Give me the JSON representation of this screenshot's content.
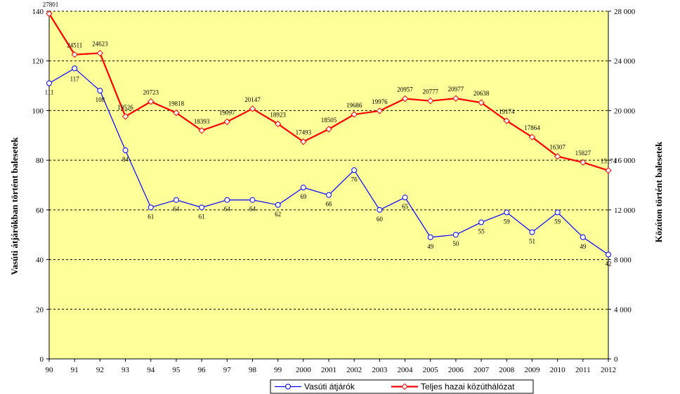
{
  "chart_data": {
    "type": "line",
    "title": "",
    "x": [
      "90",
      "91",
      "92",
      "93",
      "94",
      "95",
      "96",
      "97",
      "98",
      "99",
      "2000",
      "2001",
      "2002",
      "2003",
      "2004",
      "2005",
      "2006",
      "2007",
      "2008",
      "2009",
      "2010",
      "2011",
      "2012"
    ],
    "ylabel_left": "Vasúti átjárókban történt balesetek",
    "ylabel_right": "Közúton történt balesetek",
    "ylim_left": [
      0,
      140
    ],
    "ylim_right": [
      0,
      28000
    ],
    "yticks_left": [
      "0",
      "20",
      "40",
      "60",
      "80",
      "100",
      "120",
      "140"
    ],
    "yticks_right": [
      "0",
      "4 000",
      "8 000",
      "12 000",
      "16 000",
      "20 000",
      "24 000",
      "28 000"
    ],
    "grid": "horizontal dashed",
    "background": "#FFFF99",
    "legend_position": "bottom-center",
    "series": [
      {
        "name": "Vasúti átjárók",
        "axis": "left",
        "color": "#0000FF",
        "values": [
          111,
          117,
          108,
          84,
          61,
          64,
          61,
          64,
          64,
          62,
          69,
          66,
          76,
          60,
          65,
          49,
          50,
          55,
          59,
          51,
          59,
          49,
          42
        ],
        "labels": [
          "111",
          "117",
          "108",
          "84",
          "61",
          "64",
          "61",
          "64",
          "64",
          "62",
          "69",
          "66",
          "76",
          "60",
          "65",
          "49",
          "50",
          "55",
          "59",
          "51",
          "59",
          "49",
          "42"
        ]
      },
      {
        "name": "Teljes hazai közúthálózat",
        "axis": "right",
        "color": "#FF0000",
        "values": [
          27801,
          24511,
          24623,
          19526,
          20723,
          19818,
          18393,
          19097,
          20147,
          18923,
          17493,
          18505,
          19686,
          19976,
          20957,
          20777,
          20977,
          20638,
          19174,
          17864,
          16307,
          15827,
          15174
        ],
        "labels": [
          "27801",
          "24511",
          "24623",
          "19526",
          "20723",
          "19818",
          "18393",
          "19097",
          "20147",
          "18923",
          "17493",
          "18505",
          "19686",
          "19976",
          "20957",
          "20777",
          "20977",
          "20638",
          "19174",
          "17864",
          "16307",
          "15827",
          "15174"
        ]
      }
    ]
  }
}
